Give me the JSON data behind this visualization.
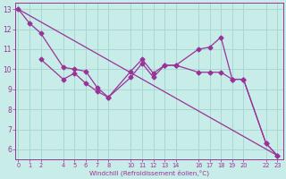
{
  "xlabel": "Windchill (Refroidissement éolien,°C)",
  "background_color": "#c8ece8",
  "grid_color": "#a8d8d4",
  "line_color": "#993399",
  "line1_x": [
    0,
    1,
    2,
    4,
    5,
    6,
    7,
    8,
    10,
    11,
    12,
    13,
    14,
    16,
    17,
    18,
    19,
    20,
    22,
    23
  ],
  "line1_y": [
    13.0,
    12.3,
    11.8,
    10.1,
    10.0,
    9.9,
    9.1,
    8.6,
    9.9,
    10.5,
    9.8,
    10.2,
    10.2,
    9.85,
    9.85,
    9.85,
    9.5,
    9.5,
    6.3,
    5.7
  ],
  "line2_x": [
    2,
    4,
    5,
    6,
    7,
    8,
    10,
    11,
    12,
    13,
    14,
    16,
    17,
    18,
    19,
    20,
    22,
    23
  ],
  "line2_y": [
    10.5,
    9.5,
    9.8,
    9.3,
    8.9,
    8.6,
    9.6,
    10.3,
    9.6,
    10.2,
    10.2,
    11.0,
    11.1,
    11.6,
    9.5,
    9.5,
    6.3,
    5.7
  ],
  "line3_x": [
    0,
    23
  ],
  "line3_y": [
    13.0,
    5.7
  ],
  "xticks": [
    0,
    1,
    2,
    4,
    5,
    6,
    7,
    8,
    10,
    11,
    12,
    13,
    14,
    16,
    17,
    18,
    19,
    20,
    22,
    23
  ],
  "yticks": [
    6,
    7,
    8,
    9,
    10,
    11,
    12,
    13
  ],
  "xlim": [
    -0.3,
    23.5
  ],
  "ylim": [
    5.5,
    13.3
  ]
}
